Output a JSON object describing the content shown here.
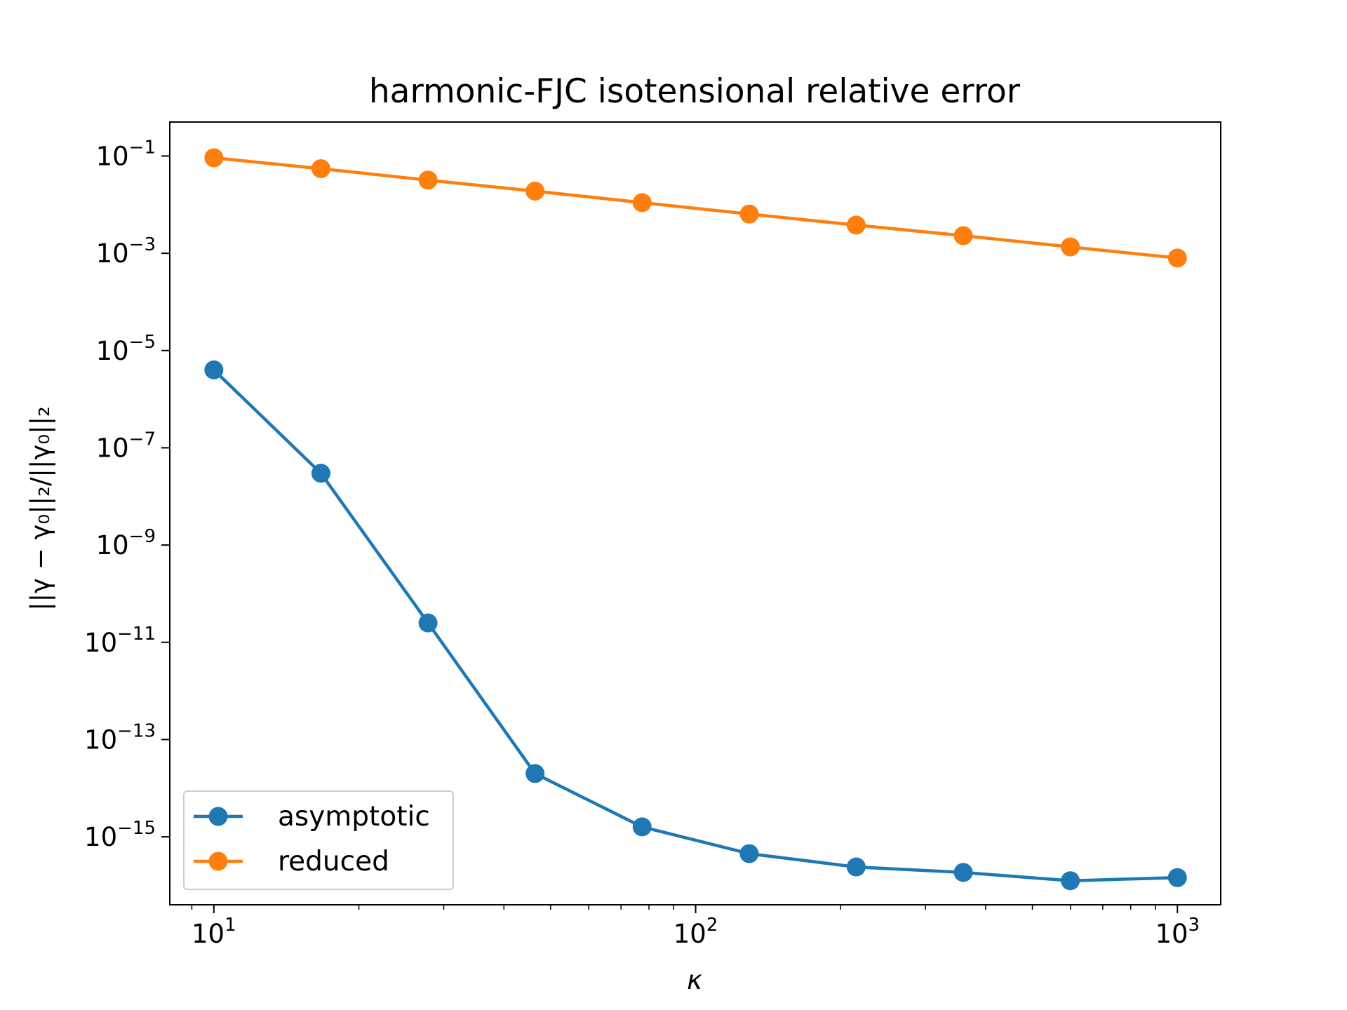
{
  "chart_data": {
    "type": "line",
    "title": "harmonic-FJC isotensional relative error",
    "xlabel": "κ",
    "ylabel": "||γ − γ₀||₂/||γ₀||₂",
    "xscale": "log",
    "yscale": "log",
    "xlim": [
      8.1,
      1230
    ],
    "ylim": [
      4e-17,
      0.5
    ],
    "grid": false,
    "legend_position": "lower-left",
    "x_ticks": [
      {
        "base": "10",
        "exp": "1",
        "value": 10
      },
      {
        "base": "10",
        "exp": "2",
        "value": 100
      },
      {
        "base": "10",
        "exp": "3",
        "value": 1000
      }
    ],
    "y_ticks": [
      {
        "base": "10",
        "exp": "−1",
        "value": 0.1
      },
      {
        "base": "10",
        "exp": "−3",
        "value": 0.001
      },
      {
        "base": "10",
        "exp": "−5",
        "value": 1e-05
      },
      {
        "base": "10",
        "exp": "−7",
        "value": 1e-07
      },
      {
        "base": "10",
        "exp": "−9",
        "value": 1e-09
      },
      {
        "base": "10",
        "exp": "−11",
        "value": 1e-11
      },
      {
        "base": "10",
        "exp": "−13",
        "value": 1e-13
      },
      {
        "base": "10",
        "exp": "−15",
        "value": 1e-15
      }
    ],
    "x": [
      10,
      16.68,
      27.83,
      46.42,
      77.43,
      129.2,
      215.4,
      359.4,
      599.5,
      1000
    ],
    "series": [
      {
        "name": "asymptotic",
        "color": "#1f77b4",
        "values": [
          4e-06,
          3e-08,
          2.5e-11,
          2e-14,
          1.6e-15,
          4.5e-16,
          2.4e-16,
          1.85e-16,
          1.25e-16,
          1.45e-16
        ]
      },
      {
        "name": "reduced",
        "color": "#ff7f0e",
        "values": [
          0.092,
          0.055,
          0.032,
          0.019,
          0.011,
          0.0064,
          0.0038,
          0.0023,
          0.00135,
          0.0008
        ]
      }
    ]
  }
}
